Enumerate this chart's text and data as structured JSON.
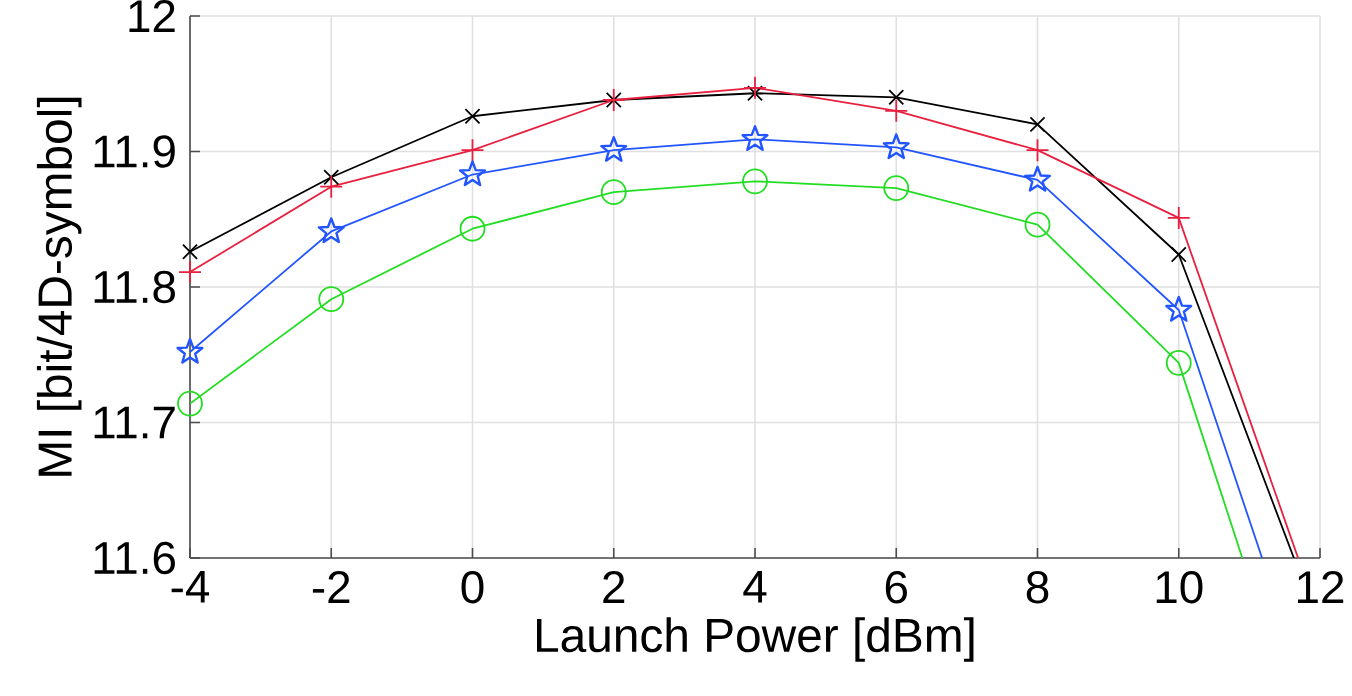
{
  "chart_data": {
    "type": "line",
    "xlabel": "Launch Power [dBm]",
    "ylabel": "MI [bit/4D-symbol]",
    "xlim": [
      -4,
      12
    ],
    "ylim": [
      11.6,
      12
    ],
    "xticks": [
      -4,
      -2,
      0,
      2,
      4,
      6,
      8,
      10,
      12
    ],
    "yticks": [
      11.6,
      11.7,
      11.8,
      11.9,
      12
    ],
    "grid": true,
    "series": [
      {
        "color": "#000000",
        "marker": "cross",
        "x": [
          -4,
          -2,
          0,
          2,
          4,
          6,
          8,
          10,
          11.63
        ],
        "values": [
          11.826,
          11.881,
          11.926,
          11.938,
          11.943,
          11.94,
          11.92,
          11.824,
          11.6
        ]
      },
      {
        "color": "#e8203f",
        "marker": "plus",
        "x": [
          -4,
          -2,
          0,
          2,
          4,
          6,
          8,
          10,
          11.69
        ],
        "values": [
          11.811,
          11.874,
          11.901,
          11.938,
          11.947,
          11.93,
          11.901,
          11.851,
          11.6
        ]
      },
      {
        "color": "#2255ff",
        "marker": "star",
        "x": [
          -4,
          -2,
          0,
          2,
          4,
          6,
          8,
          10,
          11.18
        ],
        "values": [
          11.752,
          11.841,
          11.883,
          11.901,
          11.909,
          11.903,
          11.879,
          11.783,
          11.6
        ]
      },
      {
        "color": "#22dd22",
        "marker": "circle",
        "x": [
          -4,
          -2,
          0,
          2,
          4,
          6,
          8,
          10,
          10.9
        ],
        "values": [
          11.714,
          11.791,
          11.843,
          11.87,
          11.878,
          11.873,
          11.846,
          11.744,
          11.6
        ]
      }
    ]
  }
}
